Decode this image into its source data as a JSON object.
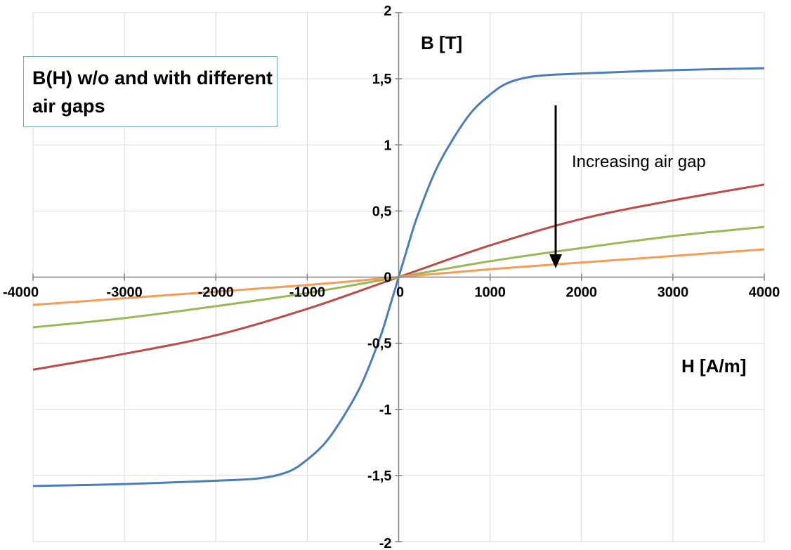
{
  "chart_data": {
    "type": "line",
    "title": "B(H) w/o and with different air gaps",
    "xlabel": "H [A/m]",
    "ylabel": "B [T]",
    "xlim": [
      -4000,
      4000
    ],
    "ylim": [
      -2,
      2
    ],
    "x_ticks": [
      "-4000",
      "-3000",
      "-2000",
      "-1000",
      "0",
      "1000",
      "2000",
      "3000",
      "4000"
    ],
    "y_ticks": [
      "2",
      "1,5",
      "1",
      "0,5",
      "0",
      "-0,5",
      "-1",
      "-1,5",
      "-2"
    ],
    "grid": true,
    "annotation": "Increasing air gap",
    "series": [
      {
        "color": "#4a7ebb",
        "x": [
          -4000,
          -3000,
          -2000,
          -1500,
          -1200,
          -1000,
          -800,
          -600,
          -400,
          -200,
          -100,
          0,
          100,
          200,
          400,
          600,
          800,
          1000,
          1200,
          1500,
          2000,
          3000,
          4000
        ],
        "y": [
          -1.58,
          -1.565,
          -1.54,
          -1.52,
          -1.47,
          -1.38,
          -1.25,
          -1.05,
          -0.8,
          -0.45,
          -0.23,
          0,
          0.23,
          0.45,
          0.8,
          1.05,
          1.25,
          1.38,
          1.47,
          1.52,
          1.54,
          1.565,
          1.58
        ]
      },
      {
        "color": "#be4b48",
        "x": [
          -4000,
          -3000,
          -2000,
          -1000,
          0,
          1000,
          2000,
          3000,
          4000
        ],
        "y": [
          -0.7,
          -0.58,
          -0.44,
          -0.24,
          0,
          0.24,
          0.44,
          0.58,
          0.7
        ]
      },
      {
        "color": "#98b954",
        "x": [
          -4000,
          -3000,
          -2000,
          -1000,
          0,
          1000,
          2000,
          3000,
          4000
        ],
        "y": [
          -0.38,
          -0.31,
          -0.22,
          -0.12,
          0,
          0.12,
          0.22,
          0.31,
          0.38
        ]
      },
      {
        "color": "#f59d56",
        "x": [
          -4000,
          -3000,
          -2000,
          -1000,
          0,
          1000,
          2000,
          3000,
          4000
        ],
        "y": [
          -0.21,
          -0.16,
          -0.11,
          -0.06,
          0,
          0.06,
          0.11,
          0.16,
          0.21
        ]
      }
    ]
  }
}
